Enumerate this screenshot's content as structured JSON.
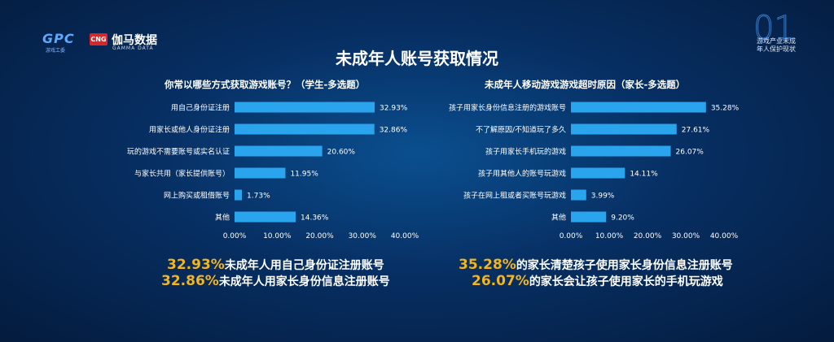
{
  "logos": {
    "gpc_text": "GPC",
    "gpc_sub": "游戏工委",
    "cng_badge": "CNG",
    "cng_name": "伽马数据",
    "cng_sub": "GAMMA DATA"
  },
  "corner": {
    "number": "01",
    "line1": "游戏产业未成",
    "line2": "年人保护现状"
  },
  "main_title": "未成年人账号获取情况",
  "highlights": [
    {
      "pct": "32.93%",
      "text": "未成年人用自己身份证注册账号"
    },
    {
      "pct": "32.86%",
      "text": "未成年人用家长身份信息注册账号"
    },
    {
      "pct": "35.28%",
      "text": "的家长清楚孩子使用家长身份信息注册账号"
    },
    {
      "pct": "26.07%",
      "text": "的家长会让孩子使用家长的手机玩游戏"
    }
  ],
  "colors": {
    "bar": "#2aa4ec",
    "accent": "#f3b51f",
    "background": "#072f63"
  },
  "chart_data": [
    {
      "type": "bar",
      "orientation": "horizontal",
      "title": "你常以哪些方式获取游戏账号？（学生-多选题）",
      "categories": [
        "用自己身份证注册",
        "用家长或他人身份证注册",
        "玩的游戏不需要账号或实名认证",
        "与家长共用（家长提供账号）",
        "网上购买或租借账号",
        "其他"
      ],
      "values": [
        32.93,
        32.86,
        20.6,
        11.95,
        1.73,
        14.36
      ],
      "value_labels": [
        "32.93%",
        "32.86%",
        "20.60%",
        "11.95%",
        "1.73%",
        "14.36%"
      ],
      "xlim": [
        0,
        40
      ],
      "ticks": [
        "0.00%",
        "10.00%",
        "20.00%",
        "30.00%",
        "40.00%"
      ],
      "grid": false
    },
    {
      "type": "bar",
      "orientation": "horizontal",
      "title": "未成年人移动游戏游戏超时原因（家长-多选题）",
      "categories": [
        "孩子用家长身份信息注册的游戏账号",
        "不了解原因/不知道玩了多久",
        "孩子用家长手机玩的游戏",
        "孩子用其他人的账号玩游戏",
        "孩子在网上租或者买账号玩游戏",
        "其他"
      ],
      "values": [
        35.28,
        27.61,
        26.07,
        14.11,
        3.99,
        9.2
      ],
      "value_labels": [
        "35.28%",
        "27.61%",
        "26.07%",
        "14.11%",
        "3.99%",
        "9.20%"
      ],
      "xlim": [
        0,
        40
      ],
      "ticks": [
        "0.00%",
        "10.00%",
        "20.00%",
        "30.00%",
        "40.00%"
      ],
      "grid": false
    }
  ]
}
